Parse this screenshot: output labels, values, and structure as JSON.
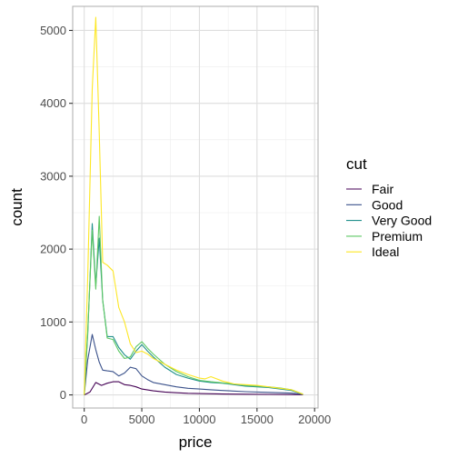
{
  "chart_data": {
    "type": "line",
    "title": "",
    "xlabel": "price",
    "ylabel": "count",
    "xlim": [
      -1000,
      20300
    ],
    "ylim": [
      -180,
      5330
    ],
    "x_ticks": [
      0,
      5000,
      10000,
      15000,
      20000
    ],
    "y_ticks": [
      0,
      1000,
      2000,
      3000,
      4000,
      5000
    ],
    "x_tick_labels": [
      "0",
      "5000",
      "10000",
      "15000",
      "20000"
    ],
    "y_tick_labels": [
      "0",
      "1000",
      "2000",
      "3000",
      "4000",
      "5000"
    ],
    "grid": true,
    "legend": {
      "title": "cut",
      "position": "right"
    },
    "series": [
      {
        "name": "Fair",
        "color": "#440154",
        "x": [
          0,
          500,
          1000,
          1500,
          2000,
          2500,
          3000,
          3500,
          4000,
          4500,
          5000,
          6000,
          7000,
          8000,
          9000,
          10000,
          12000,
          14000,
          16000,
          18000,
          19000
        ],
        "y": [
          0,
          40,
          170,
          130,
          160,
          180,
          180,
          140,
          130,
          110,
          80,
          55,
          40,
          30,
          22,
          18,
          12,
          9,
          7,
          5,
          3
        ]
      },
      {
        "name": "Good",
        "color": "#3B528B",
        "x": [
          0,
          300,
          700,
          1000,
          1300,
          1600,
          2000,
          2500,
          3000,
          3500,
          4000,
          4500,
          5000,
          5500,
          6000,
          7000,
          8000,
          9000,
          10000,
          11000,
          12000,
          14000,
          16000,
          18000,
          19000
        ],
        "y": [
          0,
          480,
          830,
          620,
          450,
          340,
          330,
          320,
          260,
          300,
          380,
          360,
          260,
          210,
          170,
          140,
          110,
          90,
          80,
          70,
          60,
          45,
          35,
          25,
          10
        ]
      },
      {
        "name": "Very Good",
        "color": "#21908C",
        "x": [
          0,
          300,
          700,
          1000,
          1300,
          1600,
          2000,
          2500,
          3000,
          3500,
          4000,
          4500,
          5000,
          5500,
          6000,
          7000,
          8000,
          9000,
          10000,
          11000,
          12000,
          13000,
          14000,
          15000,
          16000,
          17000,
          18000,
          19000
        ],
        "y": [
          0,
          820,
          2350,
          1500,
          2150,
          1300,
          800,
          800,
          650,
          550,
          490,
          600,
          690,
          600,
          520,
          380,
          280,
          230,
          190,
          170,
          160,
          140,
          120,
          110,
          100,
          80,
          60,
          10
        ]
      },
      {
        "name": "Premium",
        "color": "#5DC863",
        "x": [
          0,
          300,
          700,
          1000,
          1300,
          1600,
          2000,
          2500,
          3000,
          3500,
          4000,
          4500,
          5000,
          5500,
          6000,
          7000,
          8000,
          9000,
          10000,
          11000,
          12000,
          13000,
          14000,
          15000,
          16000,
          17000,
          18000,
          19000
        ],
        "y": [
          0,
          860,
          2260,
          1450,
          2450,
          1300,
          780,
          760,
          600,
          500,
          520,
          660,
          730,
          640,
          560,
          420,
          320,
          250,
          200,
          180,
          165,
          150,
          130,
          120,
          110,
          95,
          70,
          10
        ]
      },
      {
        "name": "Ideal",
        "color": "#FDE725",
        "x": [
          0,
          300,
          700,
          1000,
          1300,
          1600,
          2000,
          2500,
          3000,
          3500,
          4000,
          4500,
          5000,
          5500,
          6000,
          7000,
          8000,
          9000,
          10000,
          10500,
          11000,
          12000,
          13000,
          14000,
          15000,
          16000,
          17000,
          18000,
          19000
        ],
        "y": [
          0,
          1600,
          4200,
          5180,
          3600,
          1820,
          1780,
          1700,
          1200,
          1000,
          700,
          580,
          600,
          560,
          500,
          420,
          340,
          280,
          230,
          220,
          250,
          190,
          150,
          140,
          130,
          110,
          90,
          70,
          10
        ]
      }
    ]
  }
}
